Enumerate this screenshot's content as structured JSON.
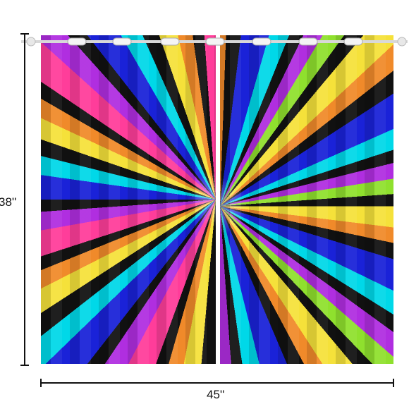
{
  "dimensions": {
    "height": "38''",
    "width": "45''"
  }
}
